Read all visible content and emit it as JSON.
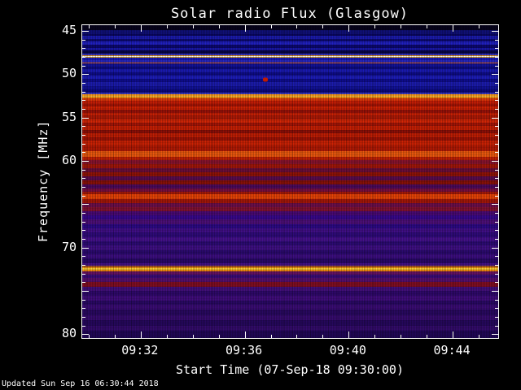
{
  "footer": {
    "updated": "Updated Sun Sep 16 06:30:44 2018"
  },
  "chart_data": {
    "type": "heatmap",
    "title": "Solar radio Flux (Glasgow)",
    "xlabel": "Start Time (07-Sep-18 09:30:00)",
    "ylabel": "Frequency [MHz]",
    "x_axis": {
      "start_minutes": 29.75,
      "end_minutes": 45.75,
      "minor_step_minutes": 1,
      "major_ticks": [
        {
          "minutes": 32,
          "label": "09:32"
        },
        {
          "minutes": 36,
          "label": "09:36"
        },
        {
          "minutes": 40,
          "label": "09:40"
        },
        {
          "minutes": 44,
          "label": "09:44"
        }
      ]
    },
    "y_axis": {
      "top_mhz": 44.35,
      "bottom_mhz": 80.45,
      "major_step_mhz": 5,
      "minor_step_mhz": 1,
      "ticks": [
        {
          "mhz": 45,
          "label": "45"
        },
        {
          "mhz": 50,
          "label": "50"
        },
        {
          "mhz": 55,
          "label": "55"
        },
        {
          "mhz": 60,
          "label": "60"
        },
        {
          "mhz": 70,
          "label": "70"
        },
        {
          "mhz": 80,
          "label": "80"
        }
      ]
    },
    "bands": [
      [
        44.35,
        44.95,
        "#06031c"
      ],
      [
        44.95,
        45.35,
        "#10107a"
      ],
      [
        45.35,
        45.6,
        "#090660"
      ],
      [
        45.6,
        45.95,
        "#1b1bb0"
      ],
      [
        45.95,
        46.25,
        "#0c0a74"
      ],
      [
        46.25,
        46.6,
        "#2121c4"
      ],
      [
        46.6,
        46.95,
        "#0b0870"
      ],
      [
        46.95,
        47.3,
        "#1917a8"
      ],
      [
        47.3,
        47.62,
        "#070548"
      ],
      [
        47.62,
        47.8,
        "#3636cc"
      ],
      [
        47.8,
        47.88,
        "#d98a1c"
      ],
      [
        47.88,
        48.04,
        "#fdfdee"
      ],
      [
        48.04,
        48.12,
        "#e8ae2e"
      ],
      [
        48.12,
        48.42,
        "#1919ba"
      ],
      [
        48.42,
        48.62,
        "#2727c4"
      ],
      [
        48.62,
        48.8,
        "#e0641a"
      ],
      [
        48.8,
        49.1,
        "#12129e"
      ],
      [
        49.1,
        49.45,
        "#0d0b80"
      ],
      [
        49.45,
        49.8,
        "#1a1ab4"
      ],
      [
        49.8,
        50.15,
        "#0e0c88"
      ],
      [
        50.15,
        50.55,
        "#1d1dbc"
      ],
      [
        50.55,
        50.95,
        "#0f0d90"
      ],
      [
        50.95,
        51.4,
        "#1c1cb0"
      ],
      [
        51.4,
        51.75,
        "#12129a"
      ],
      [
        51.75,
        52.1,
        "#0b097e"
      ],
      [
        52.1,
        52.35,
        "#3a3ac8"
      ],
      [
        52.35,
        52.48,
        "#ff9e1c"
      ],
      [
        52.48,
        52.62,
        "#ffd148"
      ],
      [
        52.62,
        52.75,
        "#f58a10"
      ],
      [
        52.75,
        53.05,
        "#e0380a"
      ],
      [
        53.05,
        53.4,
        "#c71d05"
      ],
      [
        53.4,
        53.7,
        "#a61405"
      ],
      [
        53.7,
        54.1,
        "#d32304"
      ],
      [
        54.1,
        54.45,
        "#9a1108"
      ],
      [
        54.45,
        54.8,
        "#cb2105"
      ],
      [
        54.8,
        55.2,
        "#ae1906"
      ],
      [
        55.2,
        55.6,
        "#d72706"
      ],
      [
        55.6,
        55.95,
        "#a61506"
      ],
      [
        55.95,
        56.4,
        "#c92004"
      ],
      [
        56.4,
        56.8,
        "#8e0f07"
      ],
      [
        56.8,
        57.25,
        "#c31e04"
      ],
      [
        57.25,
        57.7,
        "#9e1205"
      ],
      [
        57.7,
        58.2,
        "#ce2204"
      ],
      [
        58.2,
        58.6,
        "#b51a04"
      ],
      [
        58.6,
        58.9,
        "#b61b05"
      ],
      [
        58.9,
        59.5,
        "#ee5a0e"
      ],
      [
        59.5,
        59.95,
        "#c22004"
      ],
      [
        59.95,
        60.4,
        "#8a142e"
      ],
      [
        60.4,
        60.85,
        "#a3170a"
      ],
      [
        60.85,
        61.3,
        "#6d0e3a"
      ],
      [
        61.3,
        61.75,
        "#921307"
      ],
      [
        61.75,
        62.25,
        "#5a0c50"
      ],
      [
        62.25,
        62.7,
        "#8a1108"
      ],
      [
        62.7,
        63.2,
        "#4e0a5e"
      ],
      [
        63.2,
        63.6,
        "#7a0f40"
      ],
      [
        63.6,
        63.85,
        "#a81908"
      ],
      [
        63.85,
        64.45,
        "#ea4406"
      ],
      [
        64.45,
        64.9,
        "#a61708"
      ],
      [
        64.9,
        65.35,
        "#6e0f4c"
      ],
      [
        65.35,
        65.8,
        "#851232"
      ],
      [
        65.8,
        66.3,
        "#4a0a76"
      ],
      [
        66.3,
        66.8,
        "#38088e"
      ],
      [
        66.8,
        67.3,
        "#4e0f7a"
      ],
      [
        67.3,
        67.8,
        "#2d0a88"
      ],
      [
        67.8,
        68.3,
        "#420f8a"
      ],
      [
        68.3,
        68.8,
        "#2f0b7c"
      ],
      [
        68.8,
        69.3,
        "#46118e"
      ],
      [
        69.3,
        69.8,
        "#2d0b76"
      ],
      [
        69.8,
        70.3,
        "#401086"
      ],
      [
        70.3,
        70.8,
        "#2b0a70"
      ],
      [
        70.8,
        71.3,
        "#3d0e82"
      ],
      [
        71.3,
        71.8,
        "#29096a"
      ],
      [
        71.8,
        72.15,
        "#48138e"
      ],
      [
        72.15,
        72.3,
        "#a85c1e"
      ],
      [
        72.3,
        72.42,
        "#ff990e"
      ],
      [
        72.42,
        72.62,
        "#ffd335"
      ],
      [
        72.62,
        72.75,
        "#ee880c"
      ],
      [
        72.75,
        73.1,
        "#681264"
      ],
      [
        73.1,
        73.55,
        "#3b0c7a"
      ],
      [
        73.55,
        74.0,
        "#580f6e"
      ],
      [
        74.0,
        74.5,
        "#820e22"
      ],
      [
        74.5,
        75.0,
        "#440f7c"
      ],
      [
        75.0,
        75.55,
        "#2f096c"
      ],
      [
        75.55,
        76.1,
        "#410d7e"
      ],
      [
        76.1,
        76.65,
        "#2a0966"
      ],
      [
        76.65,
        77.2,
        "#3b0c76"
      ],
      [
        77.2,
        77.8,
        "#290962"
      ],
      [
        77.8,
        78.4,
        "#370b70"
      ],
      [
        78.4,
        79.0,
        "#26085e"
      ],
      [
        79.0,
        79.6,
        "#330b6c"
      ],
      [
        79.6,
        80.45,
        "#210758"
      ]
    ],
    "features": [
      {
        "name": "point-burst",
        "minutes": 36.8,
        "mhz": 50.6,
        "color": "#c01a02"
      }
    ]
  }
}
